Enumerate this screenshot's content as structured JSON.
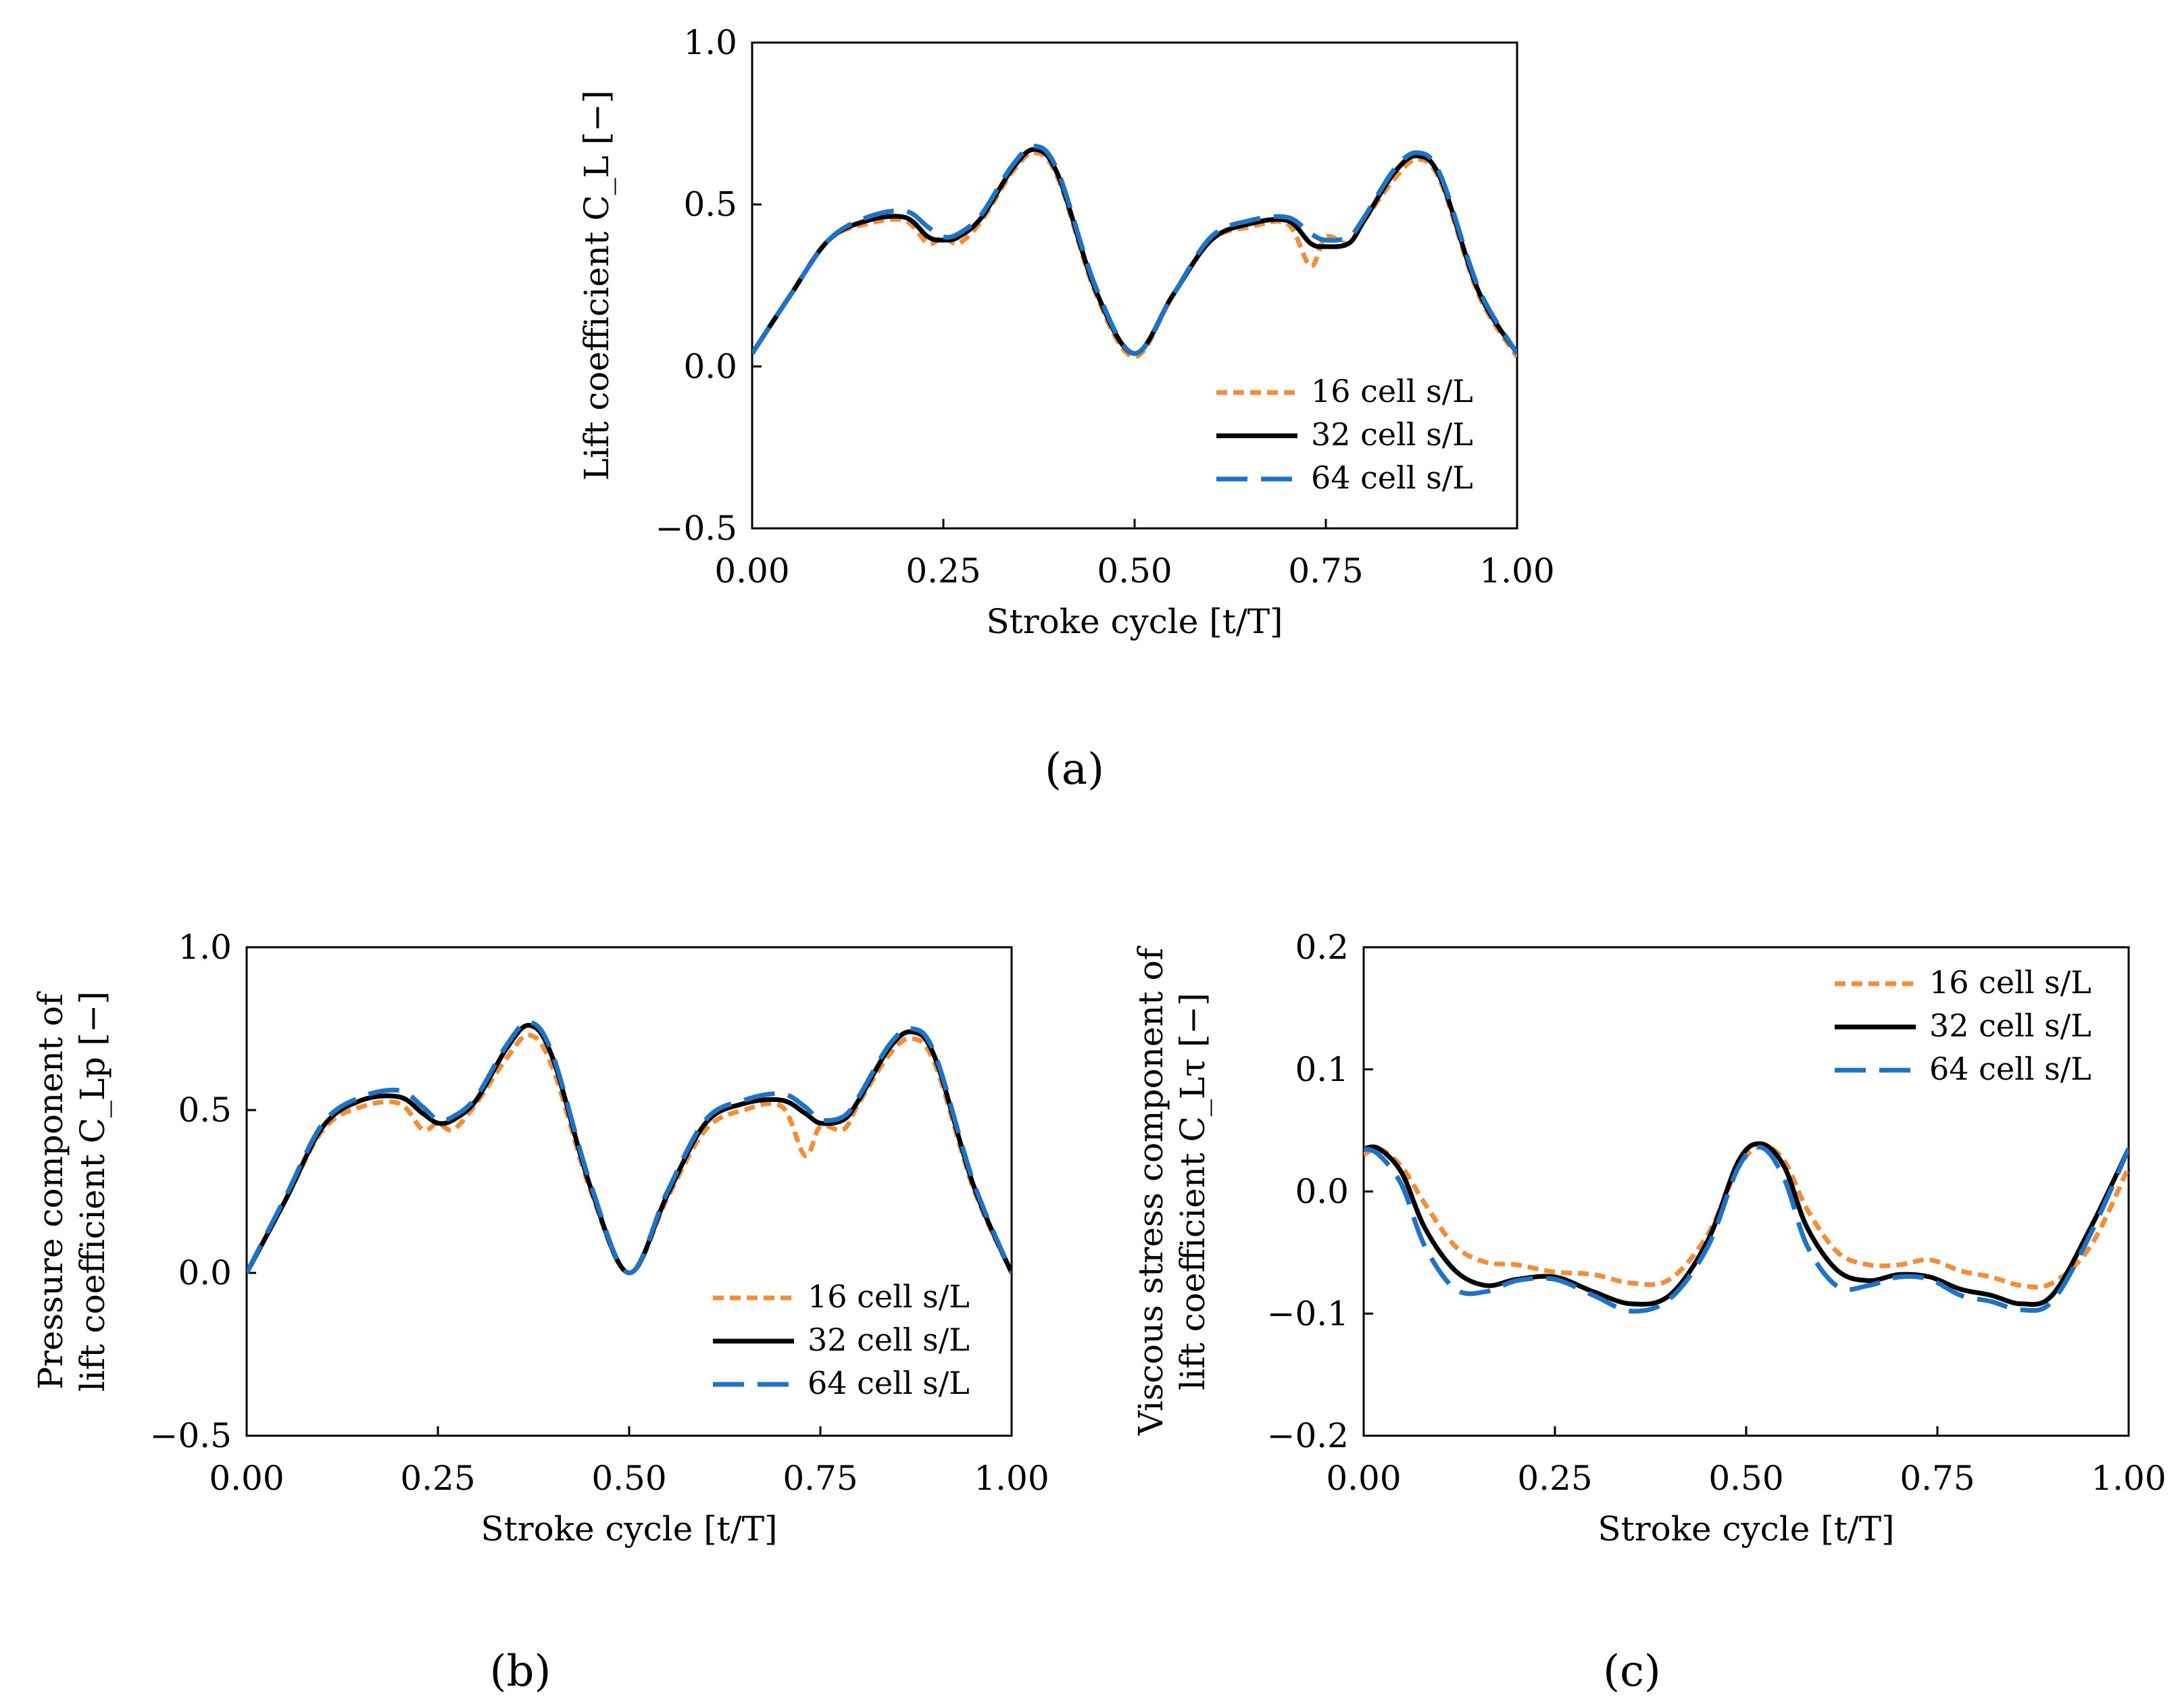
{
  "chart_data": [
    {
      "id": "a",
      "type": "line",
      "panel_label": "(a)",
      "xlabel": "Stroke cycle [t/T]",
      "ylabel_lines": [
        "Lift coefficient C_L  [−]"
      ],
      "xlim": [
        0,
        1
      ],
      "ylim": [
        -0.5,
        1.0
      ],
      "xticks": [
        0,
        0.25,
        0.5,
        0.75,
        1.0
      ],
      "xtick_labels": [
        "0.00",
        "0.25",
        "0.50",
        "0.75",
        "1.00"
      ],
      "yticks": [
        -0.5,
        0,
        0.5,
        1.0
      ],
      "ytick_labels": [
        "−0.5",
        "0.0",
        "0.5",
        "1.0"
      ],
      "legend_position": "bottom-right",
      "series": [
        {
          "name": "16 cell s/L",
          "color": "#f28e3b",
          "style": "dotted",
          "x": [
            0,
            0.05,
            0.1,
            0.15,
            0.2,
            0.23,
            0.25,
            0.27,
            0.3,
            0.34,
            0.37,
            0.4,
            0.45,
            0.5,
            0.55,
            0.6,
            0.65,
            0.7,
            0.73,
            0.75,
            0.78,
            0.8,
            0.84,
            0.87,
            0.9,
            0.95,
            1.0
          ],
          "y": [
            0.04,
            0.22,
            0.39,
            0.44,
            0.45,
            0.38,
            0.4,
            0.38,
            0.45,
            0.6,
            0.66,
            0.58,
            0.22,
            0.03,
            0.22,
            0.39,
            0.43,
            0.44,
            0.31,
            0.4,
            0.38,
            0.45,
            0.58,
            0.64,
            0.57,
            0.22,
            0.03
          ]
        },
        {
          "name": "32 cell s/L",
          "color": "#000000",
          "style": "solid",
          "x": [
            0,
            0.05,
            0.1,
            0.15,
            0.2,
            0.23,
            0.25,
            0.27,
            0.3,
            0.34,
            0.37,
            0.4,
            0.45,
            0.5,
            0.55,
            0.6,
            0.65,
            0.7,
            0.73,
            0.75,
            0.78,
            0.8,
            0.84,
            0.87,
            0.9,
            0.95,
            1.0
          ],
          "y": [
            0.04,
            0.22,
            0.39,
            0.45,
            0.46,
            0.4,
            0.39,
            0.4,
            0.46,
            0.61,
            0.67,
            0.59,
            0.23,
            0.04,
            0.22,
            0.39,
            0.44,
            0.45,
            0.38,
            0.37,
            0.38,
            0.45,
            0.6,
            0.65,
            0.58,
            0.23,
            0.04
          ]
        },
        {
          "name": "64 cell s/L",
          "color": "#1f72c4",
          "style": "dashed",
          "x": [
            0,
            0.05,
            0.1,
            0.15,
            0.2,
            0.23,
            0.25,
            0.27,
            0.3,
            0.34,
            0.37,
            0.4,
            0.45,
            0.5,
            0.55,
            0.6,
            0.65,
            0.7,
            0.73,
            0.75,
            0.78,
            0.8,
            0.84,
            0.87,
            0.9,
            0.95,
            1.0
          ],
          "y": [
            0.04,
            0.22,
            0.39,
            0.46,
            0.48,
            0.43,
            0.4,
            0.41,
            0.47,
            0.62,
            0.68,
            0.6,
            0.24,
            0.04,
            0.22,
            0.4,
            0.45,
            0.46,
            0.41,
            0.39,
            0.4,
            0.46,
            0.61,
            0.66,
            0.59,
            0.24,
            0.04
          ]
        }
      ]
    },
    {
      "id": "b",
      "type": "line",
      "panel_label": "(b)",
      "xlabel": "Stroke cycle [t/T]",
      "ylabel_lines": [
        "Pressure component of",
        "lift coefficient C_Lp  [−]"
      ],
      "xlim": [
        0,
        1
      ],
      "ylim": [
        -0.5,
        1.0
      ],
      "xticks": [
        0,
        0.25,
        0.5,
        0.75,
        1.0
      ],
      "xtick_labels": [
        "0.00",
        "0.25",
        "0.50",
        "0.75",
        "1.00"
      ],
      "yticks": [
        -0.5,
        0,
        0.5,
        1.0
      ],
      "ytick_labels": [
        "−0.5",
        "0.0",
        "0.5",
        "1.0"
      ],
      "legend_position": "bottom-right",
      "series": [
        {
          "name": "16 cell s/L",
          "color": "#f28e3b",
          "style": "dotted",
          "x": [
            0,
            0.05,
            0.1,
            0.15,
            0.2,
            0.23,
            0.25,
            0.27,
            0.3,
            0.34,
            0.37,
            0.4,
            0.45,
            0.5,
            0.55,
            0.6,
            0.65,
            0.7,
            0.73,
            0.75,
            0.78,
            0.8,
            0.84,
            0.87,
            0.9,
            0.95,
            1.0
          ],
          "y": [
            0.0,
            0.22,
            0.44,
            0.51,
            0.52,
            0.44,
            0.46,
            0.44,
            0.52,
            0.66,
            0.73,
            0.63,
            0.25,
            0.0,
            0.23,
            0.44,
            0.5,
            0.51,
            0.36,
            0.45,
            0.44,
            0.52,
            0.67,
            0.72,
            0.64,
            0.26,
            0.0
          ]
        },
        {
          "name": "32 cell s/L",
          "color": "#000000",
          "style": "solid",
          "x": [
            0,
            0.05,
            0.1,
            0.15,
            0.2,
            0.23,
            0.25,
            0.27,
            0.3,
            0.34,
            0.37,
            0.4,
            0.45,
            0.5,
            0.55,
            0.6,
            0.65,
            0.7,
            0.73,
            0.75,
            0.78,
            0.8,
            0.84,
            0.87,
            0.9,
            0.95,
            1.0
          ],
          "y": [
            0.0,
            0.22,
            0.45,
            0.53,
            0.54,
            0.49,
            0.46,
            0.47,
            0.53,
            0.69,
            0.76,
            0.66,
            0.26,
            0.0,
            0.24,
            0.46,
            0.52,
            0.53,
            0.49,
            0.46,
            0.47,
            0.53,
            0.69,
            0.74,
            0.66,
            0.27,
            0.0
          ]
        },
        {
          "name": "64 cell s/L",
          "color": "#1f72c4",
          "style": "dashed",
          "x": [
            0,
            0.05,
            0.1,
            0.15,
            0.2,
            0.23,
            0.25,
            0.27,
            0.3,
            0.34,
            0.37,
            0.4,
            0.45,
            0.5,
            0.55,
            0.6,
            0.65,
            0.7,
            0.73,
            0.75,
            0.78,
            0.8,
            0.84,
            0.87,
            0.9,
            0.95,
            1.0
          ],
          "y": [
            0.0,
            0.23,
            0.46,
            0.54,
            0.56,
            0.51,
            0.47,
            0.48,
            0.54,
            0.7,
            0.77,
            0.67,
            0.27,
            0.0,
            0.25,
            0.47,
            0.53,
            0.55,
            0.51,
            0.47,
            0.48,
            0.54,
            0.7,
            0.75,
            0.67,
            0.28,
            0.0
          ]
        }
      ]
    },
    {
      "id": "c",
      "type": "line",
      "panel_label": "(c)",
      "xlabel": "Stroke cycle [t/T]",
      "ylabel_lines": [
        "Viscous stress component of",
        "lift coefficient C_Lτ  [−]"
      ],
      "xlim": [
        0,
        1
      ],
      "ylim": [
        -0.2,
        0.2
      ],
      "xticks": [
        0,
        0.25,
        0.5,
        0.75,
        1.0
      ],
      "xtick_labels": [
        "0.00",
        "0.25",
        "0.50",
        "0.75",
        "1.00"
      ],
      "yticks": [
        -0.2,
        -0.1,
        0,
        0.1,
        0.2
      ],
      "ytick_labels": [
        "−0.2",
        "−0.1",
        "0.0",
        "0.1",
        "0.2"
      ],
      "legend_position": "top-right",
      "series": [
        {
          "name": "16 cell s/L",
          "color": "#f28e3b",
          "style": "dotted",
          "x": [
            0,
            0.02,
            0.05,
            0.08,
            0.12,
            0.16,
            0.2,
            0.25,
            0.3,
            0.35,
            0.4,
            0.45,
            0.49,
            0.52,
            0.55,
            0.58,
            0.62,
            0.66,
            0.7,
            0.74,
            0.78,
            0.82,
            0.86,
            0.9,
            0.95,
            1.0
          ],
          "y": [
            0.03,
            0.035,
            0.02,
            -0.01,
            -0.045,
            -0.058,
            -0.06,
            -0.066,
            -0.068,
            -0.075,
            -0.072,
            -0.035,
            0.02,
            0.037,
            0.025,
            -0.015,
            -0.05,
            -0.06,
            -0.06,
            -0.056,
            -0.065,
            -0.07,
            -0.077,
            -0.075,
            -0.045,
            0.02
          ]
        },
        {
          "name": "32 cell s/L",
          "color": "#000000",
          "style": "solid",
          "x": [
            0,
            0.02,
            0.05,
            0.08,
            0.12,
            0.16,
            0.2,
            0.25,
            0.3,
            0.35,
            0.4,
            0.45,
            0.49,
            0.52,
            0.55,
            0.58,
            0.62,
            0.66,
            0.7,
            0.74,
            0.78,
            0.82,
            0.86,
            0.9,
            0.95,
            1.0
          ],
          "y": [
            0.035,
            0.035,
            0.015,
            -0.03,
            -0.065,
            -0.077,
            -0.072,
            -0.07,
            -0.082,
            -0.092,
            -0.085,
            -0.04,
            0.025,
            0.039,
            0.02,
            -0.03,
            -0.065,
            -0.073,
            -0.068,
            -0.07,
            -0.08,
            -0.085,
            -0.092,
            -0.085,
            -0.03,
            0.035
          ]
        },
        {
          "name": "64 cell s/L",
          "color": "#1f72c4",
          "style": "dashed",
          "x": [
            0,
            0.02,
            0.05,
            0.08,
            0.12,
            0.16,
            0.2,
            0.25,
            0.3,
            0.35,
            0.4,
            0.45,
            0.49,
            0.52,
            0.55,
            0.58,
            0.62,
            0.66,
            0.7,
            0.74,
            0.78,
            0.82,
            0.86,
            0.9,
            0.95,
            1.0
          ],
          "y": [
            0.035,
            0.03,
            0.005,
            -0.045,
            -0.08,
            -0.082,
            -0.073,
            -0.072,
            -0.085,
            -0.098,
            -0.088,
            -0.045,
            0.02,
            0.036,
            0.01,
            -0.045,
            -0.078,
            -0.077,
            -0.07,
            -0.072,
            -0.085,
            -0.09,
            -0.097,
            -0.09,
            -0.035,
            0.035
          ]
        }
      ]
    }
  ]
}
